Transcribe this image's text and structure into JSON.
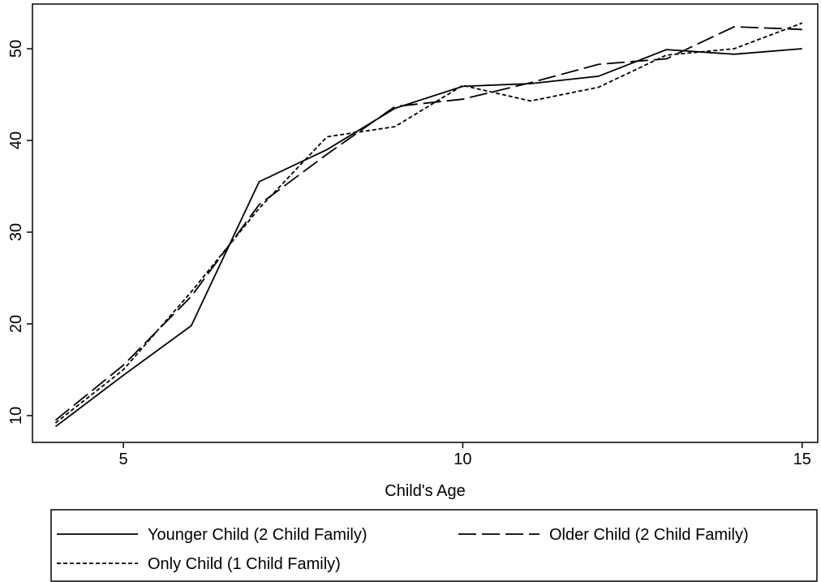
{
  "chart_data": {
    "type": "line",
    "x_label": "Child's Age",
    "x": [
      4,
      5,
      6,
      7,
      8,
      9,
      10,
      11,
      12,
      13,
      14,
      15
    ],
    "series": [
      {
        "name": "Younger Child (2 Child Family)",
        "color": "#000000",
        "dash": "solid",
        "values": [
          8.8,
          14.4,
          19.8,
          35.5,
          39,
          43.5,
          45.9,
          46.2,
          47,
          49.9,
          49.4,
          50
        ]
      },
      {
        "name": "Older Child (2 Child Family)",
        "color": "#000000",
        "dash": "long",
        "values": [
          9.5,
          15.5,
          23,
          33,
          38.5,
          43.7,
          44.5,
          46.3,
          48.3,
          48.9,
          52.4,
          52.1
        ]
      },
      {
        "name": "Only Child (1 Child Family)",
        "color": "#000000",
        "dash": "short",
        "values": [
          9.2,
          15,
          23.5,
          32.6,
          40.4,
          41.5,
          46,
          44.3,
          45.8,
          49.3,
          50,
          52.8
        ]
      }
    ],
    "xlim": [
      3.66,
      15.23
    ],
    "xticks": [
      5,
      10,
      15
    ],
    "ylim": [
      7.08,
      54.87
    ],
    "yticks": [
      10,
      20,
      30,
      40,
      50
    ],
    "grid": false,
    "legend": "bottom"
  }
}
